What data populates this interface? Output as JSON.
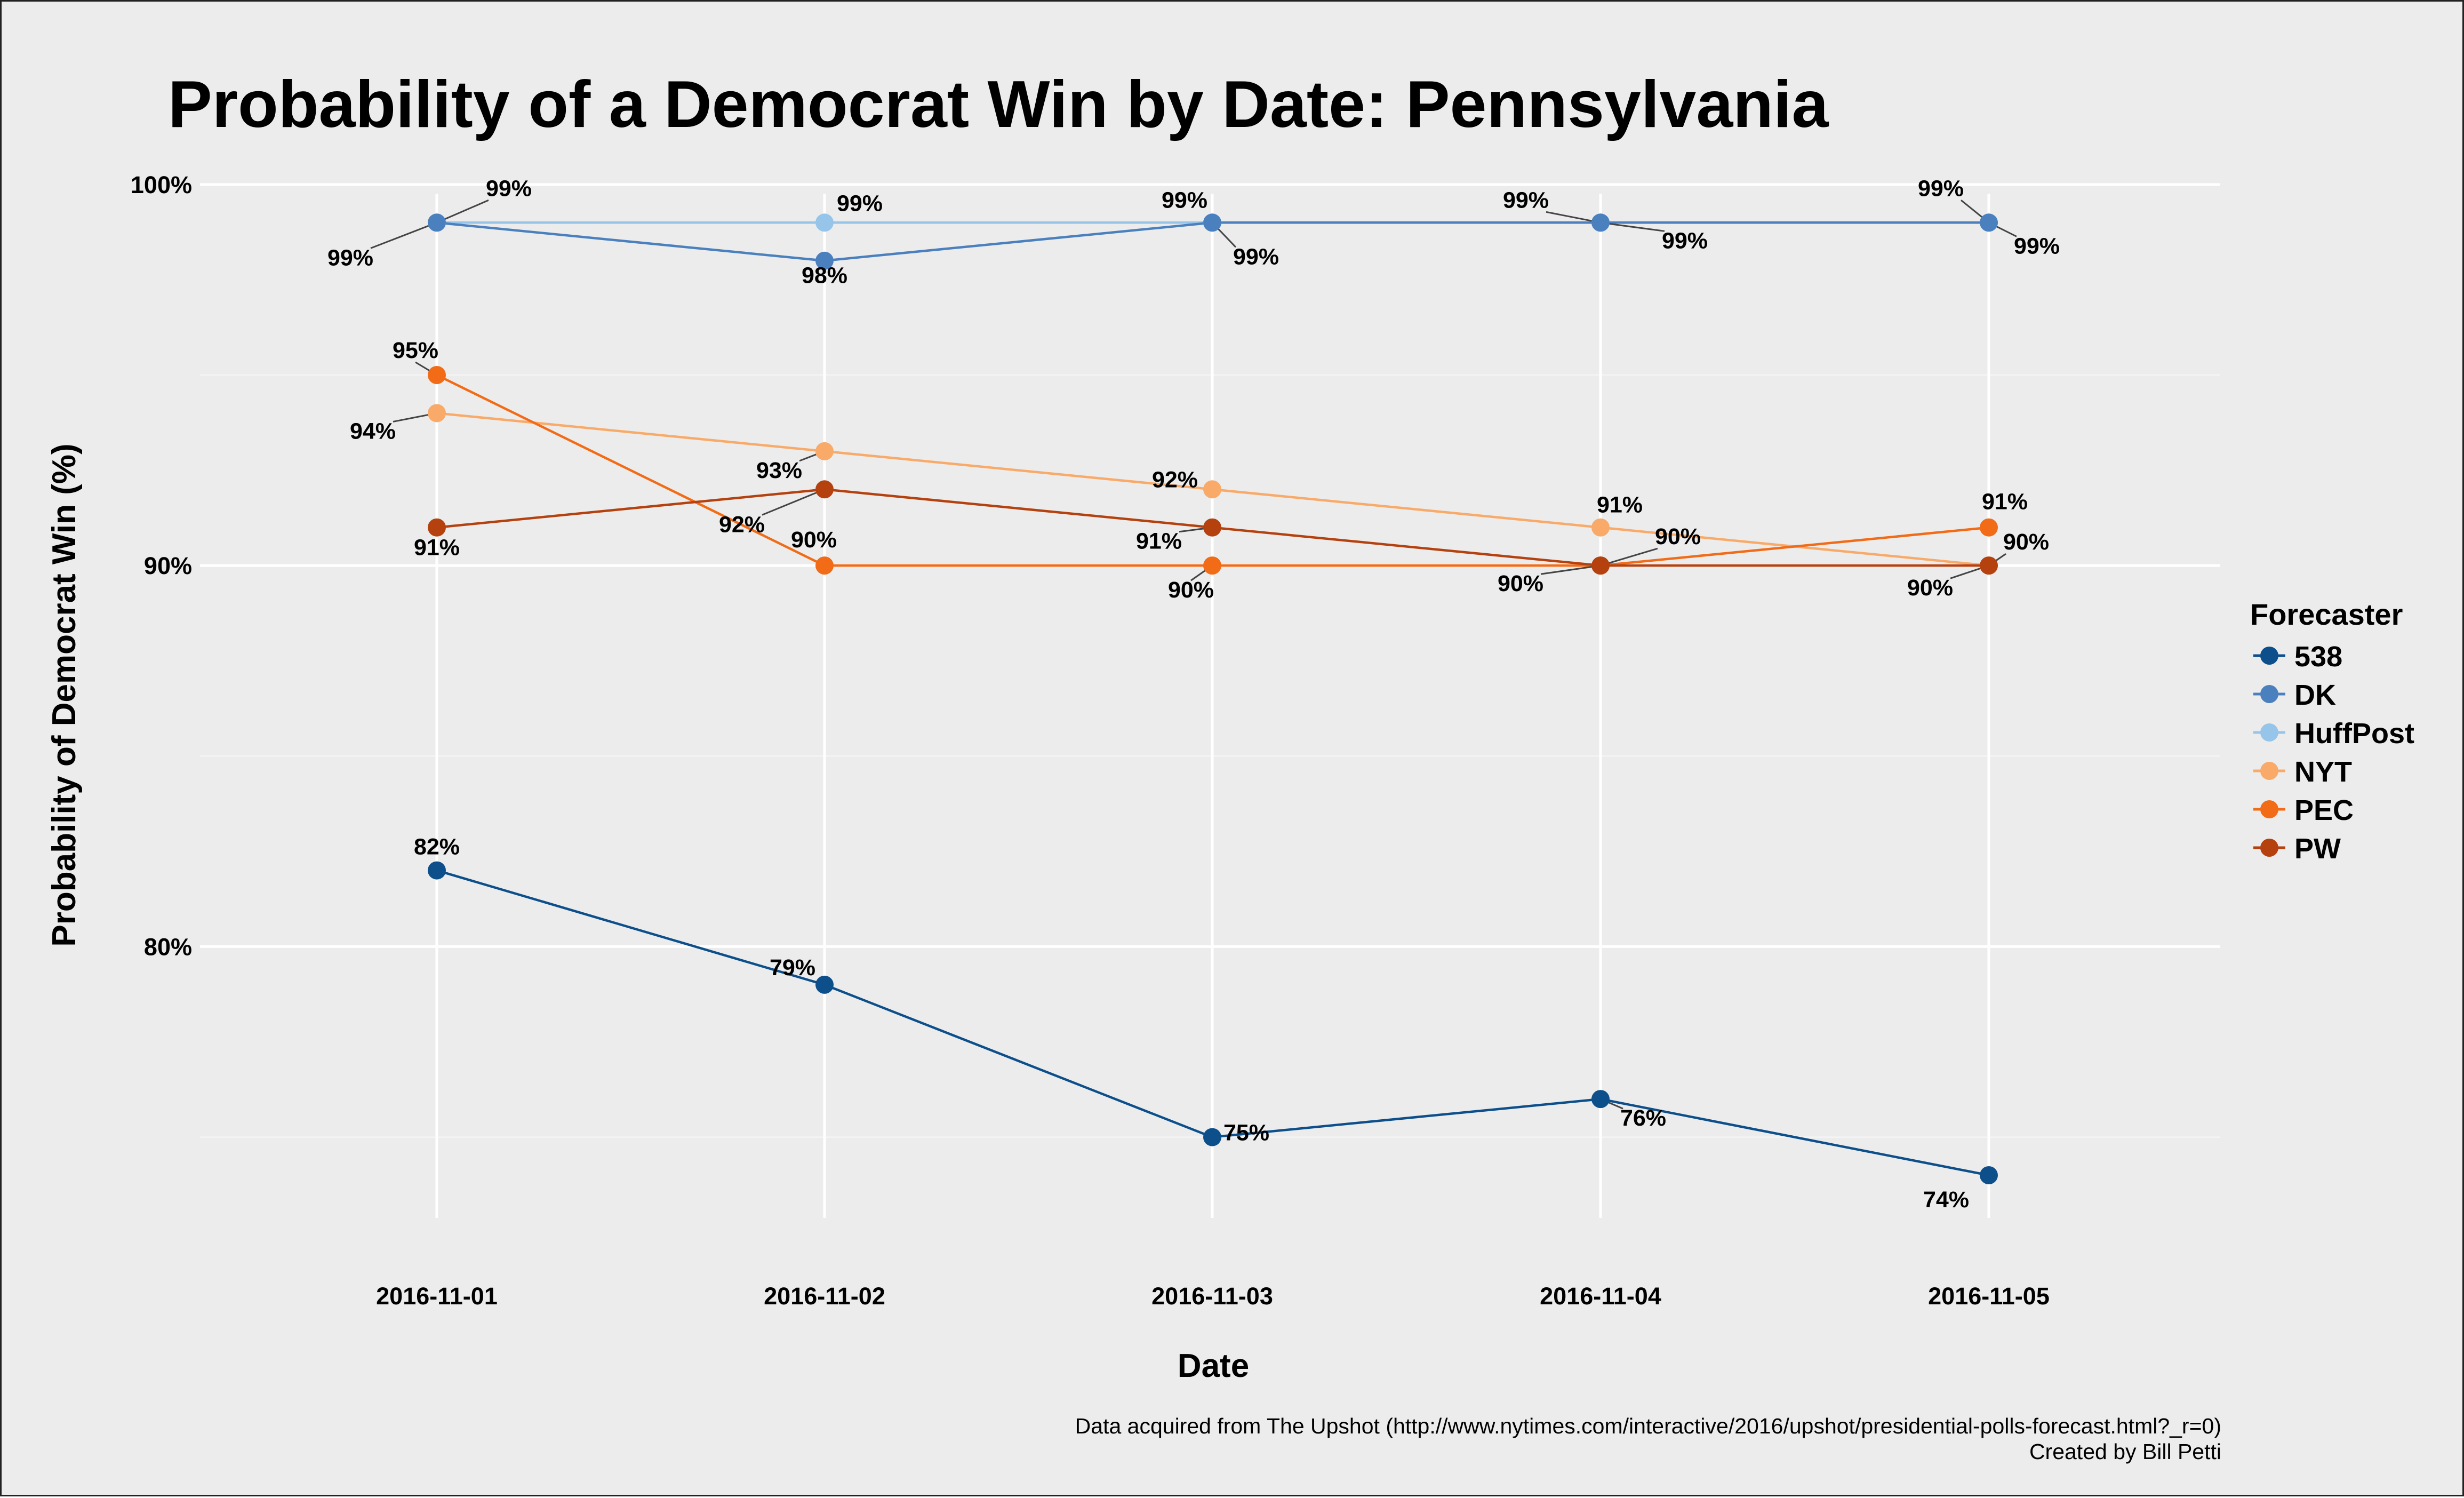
{
  "chart_data": {
    "type": "line",
    "title": "Probability of a Democrat Win by Date: Pennsylvania",
    "xlabel": "Date",
    "ylabel": "Probability of Democrat Win (%)",
    "categories": [
      "2016-11-01",
      "2016-11-02",
      "2016-11-03",
      "2016-11-04",
      "2016-11-05"
    ],
    "ylim": [
      72.6,
      100.6
    ],
    "yticks": [
      80,
      90,
      100
    ],
    "ytick_labels": [
      "80%",
      "90%",
      "100%"
    ],
    "grid": true,
    "legend_title": "Forecaster",
    "legend_position": "right",
    "series": [
      {
        "name": "538",
        "color": "#0d4f8b",
        "values": [
          82,
          79,
          75,
          76,
          74
        ],
        "labels": [
          "82%",
          "79%",
          "75%",
          "76%",
          "74%"
        ]
      },
      {
        "name": "DK",
        "color": "#4a80be",
        "values": [
          99,
          98,
          99,
          99,
          99
        ],
        "labels": [
          "99%",
          "98%",
          "99%",
          "99%",
          "99%"
        ]
      },
      {
        "name": "HuffPost",
        "color": "#97c5ea",
        "values": [
          99,
          99,
          99,
          99,
          99
        ],
        "labels": [
          "99%",
          "99%",
          "99%",
          "99%",
          "99%"
        ]
      },
      {
        "name": "NYT",
        "color": "#f9aa68",
        "values": [
          94,
          93,
          92,
          91,
          90
        ],
        "labels": [
          "94%",
          "93%",
          "92%",
          "91%",
          "90%"
        ]
      },
      {
        "name": "PEC",
        "color": "#f26b16",
        "values": [
          95,
          90,
          90,
          90,
          91
        ],
        "labels": [
          "95%",
          "90%",
          "90%",
          "90%",
          "91%"
        ]
      },
      {
        "name": "PW",
        "color": "#b5410f",
        "values": [
          91,
          92,
          91,
          90,
          90
        ],
        "labels": [
          "91%",
          "92%",
          "91%",
          "90%",
          "90%"
        ]
      }
    ]
  },
  "caption": {
    "line1": "Data acquired from The Upshot (http://www.nytimes.com/interactive/2016/upshot/presidential-polls-forecast.html?_r=0)",
    "line2": "Created by Bill Petti"
  }
}
